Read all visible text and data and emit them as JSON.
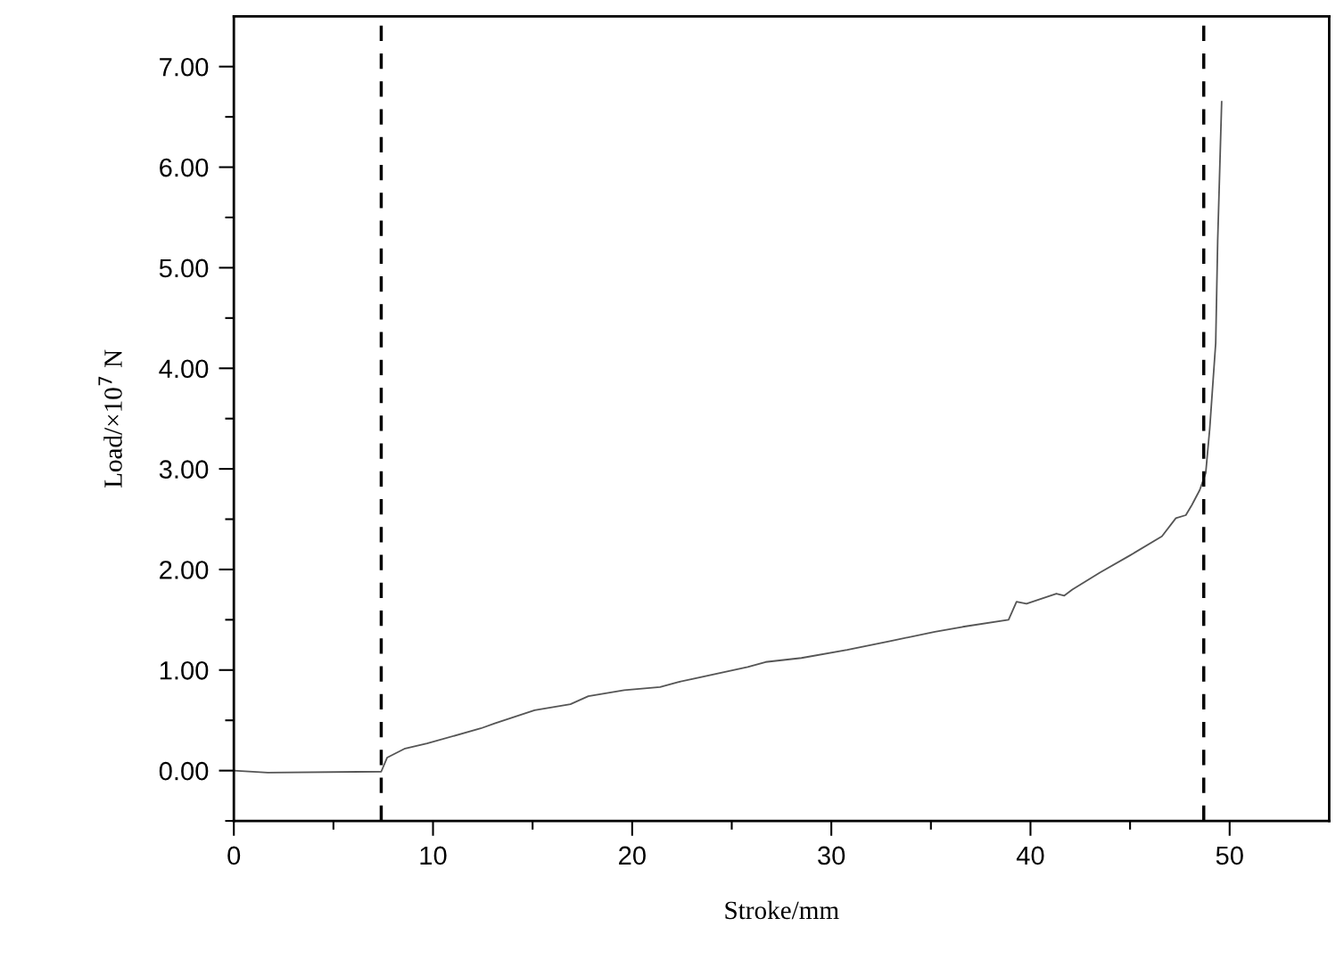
{
  "chart_data": {
    "type": "line",
    "xlabel": "Stroke/mm",
    "ylabel": "Load/×10$^{7}$ N",
    "x": [
      0,
      1.7,
      7.4,
      7.7,
      8.6,
      9.7,
      12.4,
      13.1,
      15.1,
      16.9,
      17.8,
      19.6,
      21.4,
      22.3,
      25.8,
      26.7,
      28.5,
      30.8,
      33.0,
      35.2,
      36.6,
      38.9,
      39.3,
      39.8,
      41.3,
      41.7,
      42.1,
      43.5,
      45.0,
      46.6,
      47.3,
      47.8,
      48.1,
      48.5,
      48.8,
      49.0,
      49.3,
      49.4,
      49.6
    ],
    "series": [
      {
        "color": "#555555",
        "values": [
          0.0,
          -0.02,
          -0.01,
          0.13,
          0.22,
          0.27,
          0.42,
          0.47,
          0.6,
          0.66,
          0.74,
          0.8,
          0.83,
          0.88,
          1.03,
          1.08,
          1.12,
          1.2,
          1.29,
          1.38,
          1.43,
          1.5,
          1.68,
          1.66,
          1.76,
          1.74,
          1.8,
          1.97,
          2.14,
          2.33,
          2.51,
          2.54,
          2.64,
          2.79,
          2.96,
          3.4,
          4.25,
          5.27,
          6.65
        ]
      }
    ],
    "xlim": [
      0,
      55
    ],
    "ylim": [
      -0.5,
      7.5
    ],
    "xticks": [
      0,
      {
        "value": 5,
        "label": null
      },
      10,
      {
        "value": 15,
        "label": null
      },
      20,
      {
        "value": 25,
        "label": null
      },
      30,
      {
        "value": 35,
        "label": null
      },
      40,
      {
        "value": 45,
        "label": null
      },
      50
    ],
    "yticks": [
      {
        "value": -0.5,
        "label": null
      },
      {
        "value": 0,
        "label": "0.00"
      },
      {
        "value": 0.5,
        "label": null
      },
      {
        "value": 1,
        "label": "1.00"
      },
      {
        "value": 1.5,
        "label": null
      },
      {
        "value": 2,
        "label": "2.00"
      },
      {
        "value": 2.5,
        "label": null
      },
      {
        "value": 3,
        "label": "3.00"
      },
      {
        "value": 3.5,
        "label": null
      },
      {
        "value": 4,
        "label": "4.00"
      },
      {
        "value": 4.5,
        "label": null
      },
      {
        "value": 5,
        "label": "5.00"
      },
      {
        "value": 5.5,
        "label": null
      },
      {
        "value": 6,
        "label": "6.00"
      },
      {
        "value": 6.5,
        "label": null
      },
      {
        "value": 7,
        "label": "7.00"
      }
    ],
    "ref_lines": [
      {
        "axis": "x",
        "value": 7.4,
        "color": "#000000",
        "line_style": "dashed"
      },
      {
        "axis": "x",
        "value": 48.7,
        "color": "#000000",
        "line_style": "dashed"
      }
    ],
    "grid": false,
    "legend": false,
    "marker": "none",
    "line_style": "solid"
  }
}
